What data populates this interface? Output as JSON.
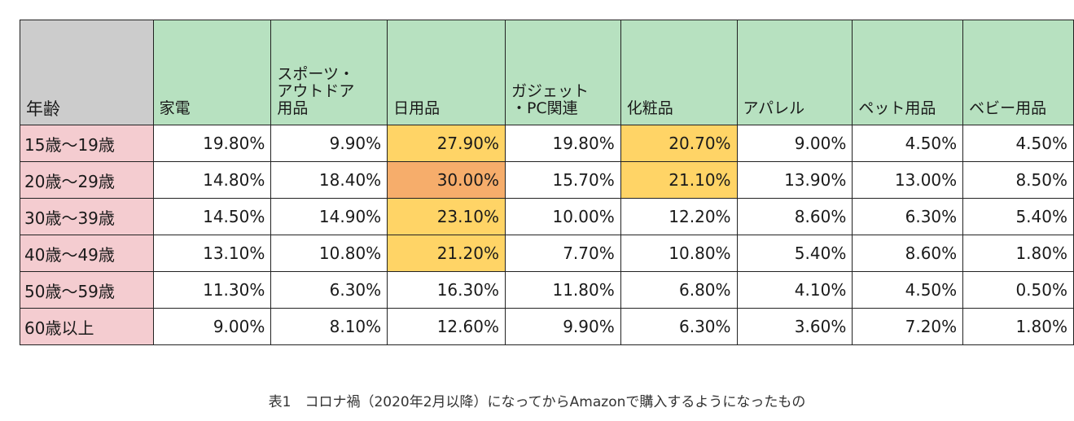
{
  "table": {
    "age_header": "年齢",
    "columns": [
      "家電",
      "スポーツ・\nアウトドア\n用品",
      "日用品",
      "ガジェット\n・PC関連",
      "化粧品",
      "アパレル",
      "ペット用品",
      "ベビー用品"
    ],
    "rows": [
      {
        "label": "15歳〜19歳",
        "values": [
          "19.80%",
          "9.90%",
          "27.90%",
          "19.80%",
          "20.70%",
          "9.00%",
          "4.50%",
          "4.50%"
        ]
      },
      {
        "label": "20歳〜29歳",
        "values": [
          "14.80%",
          "18.40%",
          "30.00%",
          "15.70%",
          "21.10%",
          "13.90%",
          "13.00%",
          "8.50%"
        ]
      },
      {
        "label": "30歳〜39歳",
        "values": [
          "14.50%",
          "14.90%",
          "23.10%",
          "10.00%",
          "12.20%",
          "8.60%",
          "6.30%",
          "5.40%"
        ]
      },
      {
        "label": "40歳〜49歳",
        "values": [
          "13.10%",
          "10.80%",
          "21.20%",
          "7.70%",
          "10.80%",
          "5.40%",
          "8.60%",
          "1.80%"
        ]
      },
      {
        "label": "50歳〜59歳",
        "values": [
          "11.30%",
          "6.30%",
          "16.30%",
          "11.80%",
          "6.80%",
          "4.10%",
          "4.50%",
          "0.50%"
        ]
      },
      {
        "label": "60歳以上",
        "values": [
          "9.00%",
          "8.10%",
          "12.60%",
          "9.90%",
          "6.30%",
          "3.60%",
          "7.20%",
          "1.80%"
        ]
      }
    ],
    "highlights": [
      {
        "row": 0,
        "col": 2,
        "color": "yellow"
      },
      {
        "row": 0,
        "col": 4,
        "color": "yellow"
      },
      {
        "row": 1,
        "col": 2,
        "color": "orange"
      },
      {
        "row": 1,
        "col": 4,
        "color": "yellow"
      },
      {
        "row": 2,
        "col": 2,
        "color": "yellow"
      },
      {
        "row": 3,
        "col": 2,
        "color": "yellow"
      }
    ],
    "colors": {
      "header_age": "#cccccc",
      "header_category": "#b7e1c0",
      "row_label": "#f4ccd0",
      "highlight_yellow": "#ffd466",
      "highlight_orange": "#f6ad6b"
    }
  },
  "caption": "表1　コロナ禍（2020年2月以降）になってからAmazonで購入するようになったもの"
}
